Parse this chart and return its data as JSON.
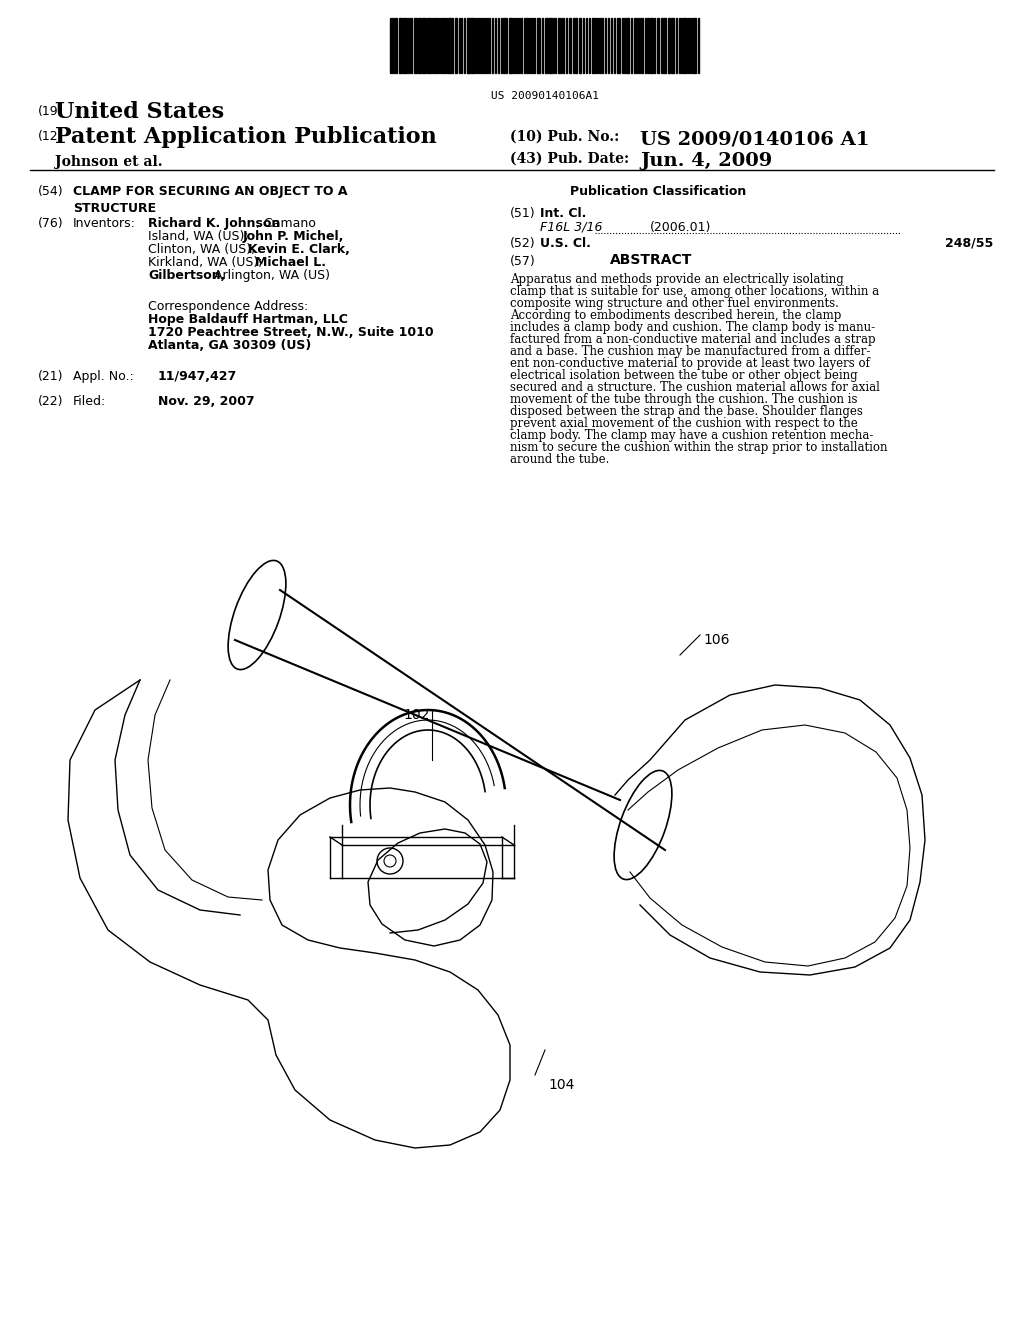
{
  "bg_color": "#ffffff",
  "title_number_19": "(19)",
  "title_country": "United States",
  "title_number_12": "(12)",
  "title_type": "Patent Application Publication",
  "title_number_10": "(10) Pub. No.:",
  "pub_number": "US 2009/0140106 A1",
  "title_number_43": "(43) Pub. Date:",
  "pub_date": "Jun. 4, 2009",
  "applicant": "Johnson et al.",
  "barcode_text": "US 20090140106A1",
  "field_54_label": "(54)",
  "field_54_title": "CLAMP FOR SECURING AN OBJECT TO A\nSTRUCTURE",
  "field_76_label": "(76)",
  "field_76_name": "Inventors:",
  "correspondence_label": "Correspondence Address:",
  "correspondence_firm": "Hope Baldauff Hartman, LLC",
  "correspondence_addr1": "1720 Peachtree Street, N.W., Suite 1010",
  "correspondence_addr2": "Atlanta, GA 30309 (US)",
  "field_21_label": "(21)",
  "field_21_name": "Appl. No.:",
  "field_21_value": "11/947,427",
  "field_22_label": "(22)",
  "field_22_name": "Filed:",
  "field_22_value": "Nov. 29, 2007",
  "pub_class_header": "Publication Classification",
  "field_51_label": "(51)",
  "field_51_name": "Int. Cl.",
  "field_51_class": "F16L 3/16",
  "field_51_year": "(2006.01)",
  "field_52_label": "(52)",
  "field_52_name": "U.S. Cl.",
  "field_52_value": "248/55",
  "field_57_label": "(57)",
  "field_57_name": "ABSTRACT",
  "abstract_lines": [
    "Apparatus and methods provide an electrically isolating",
    "clamp that is suitable for use, among other locations, within a",
    "composite wing structure and other fuel environments.",
    "According to embodiments described herein, the clamp",
    "includes a clamp body and cushion. The clamp body is manu-",
    "factured from a non-conductive material and includes a strap",
    "and a base. The cushion may be manufactured from a differ-",
    "ent non-conductive material to provide at least two layers of",
    "electrical isolation between the tube or other object being",
    "secured and a structure. The cushion material allows for axial",
    "movement of the tube through the cushion. The cushion is",
    "disposed between the strap and the base. Shoulder flanges",
    "prevent axial movement of the cushion with respect to the",
    "clamp body. The clamp may have a cushion retention mecha-",
    "nism to secure the cushion within the strap prior to installation",
    "around the tube."
  ],
  "label_102": "102",
  "label_104": "104",
  "label_106": "106"
}
